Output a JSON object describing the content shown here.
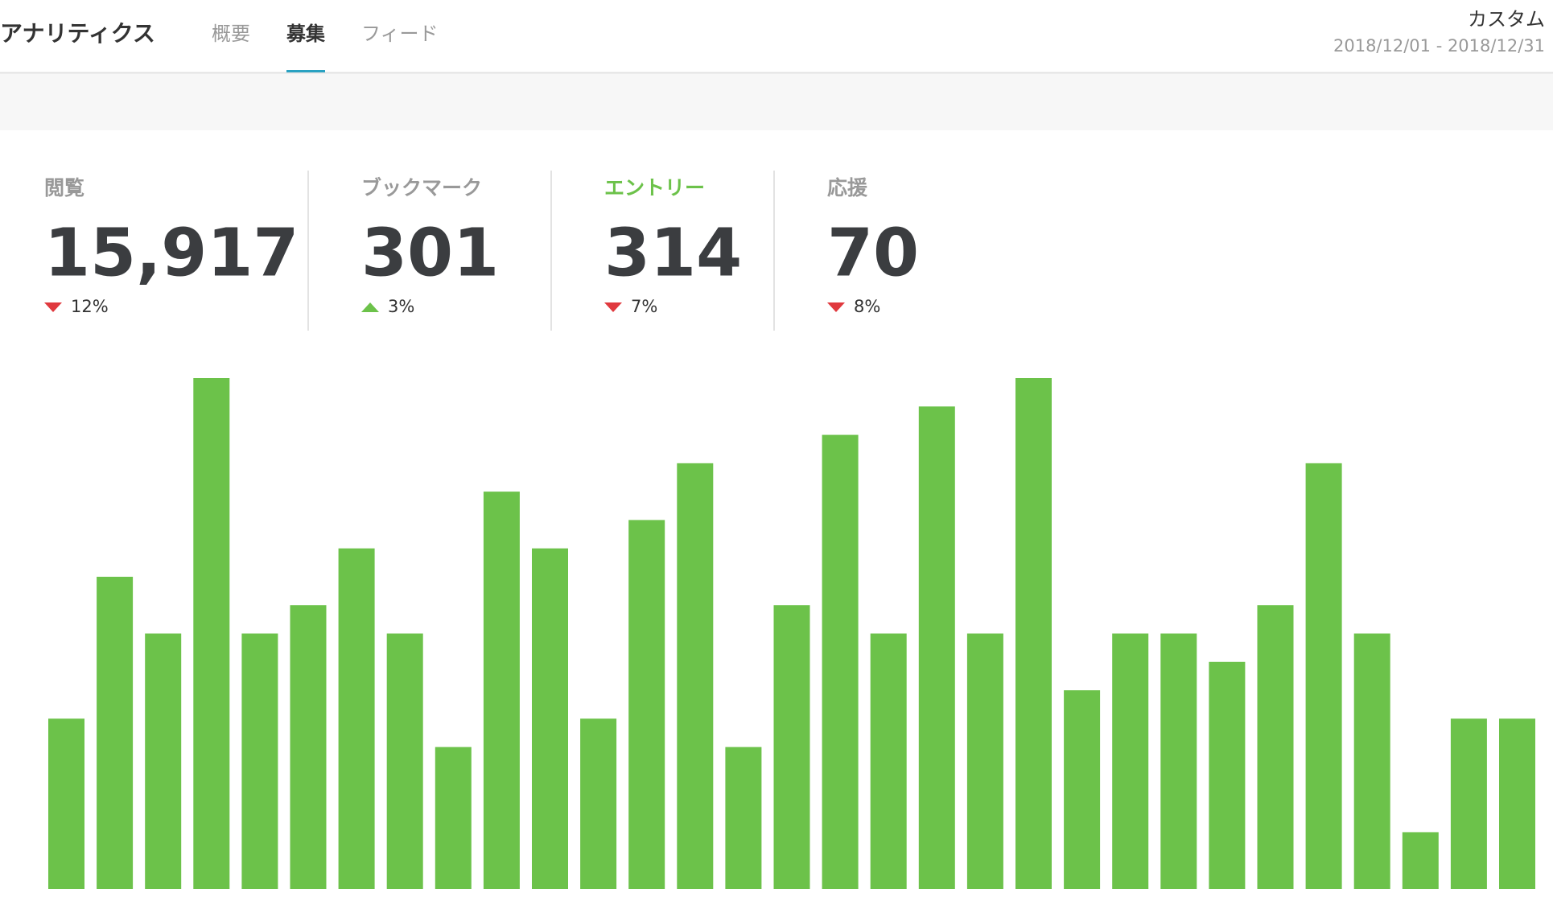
{
  "header": {
    "title": "アナリティクス",
    "tabs": [
      "概要",
      "募集",
      "フィード"
    ],
    "active_tab": 1,
    "range_label": "カスタム",
    "date_range": "2018/12/01 - 2018/12/31"
  },
  "stats": [
    {
      "label": "閲覧",
      "value": "15,917",
      "change": "12%",
      "direction": "down",
      "selected": false
    },
    {
      "label": "ブックマーク",
      "value": "301",
      "change": "3%",
      "direction": "up",
      "selected": false
    },
    {
      "label": "エントリー",
      "value": "314",
      "change": "7%",
      "direction": "down",
      "selected": true
    },
    {
      "label": "応援",
      "value": "70",
      "change": "8%",
      "direction": "down",
      "selected": false
    }
  ],
  "chart_data": {
    "type": "bar",
    "color": "#6cc24a",
    "values": [
      6,
      11,
      9,
      18,
      9,
      10,
      12,
      9,
      5,
      14,
      12,
      6,
      13,
      15,
      5,
      10,
      16,
      9,
      17,
      9,
      18,
      7,
      9,
      9,
      8,
      10,
      15,
      9,
      2,
      6,
      6
    ]
  }
}
